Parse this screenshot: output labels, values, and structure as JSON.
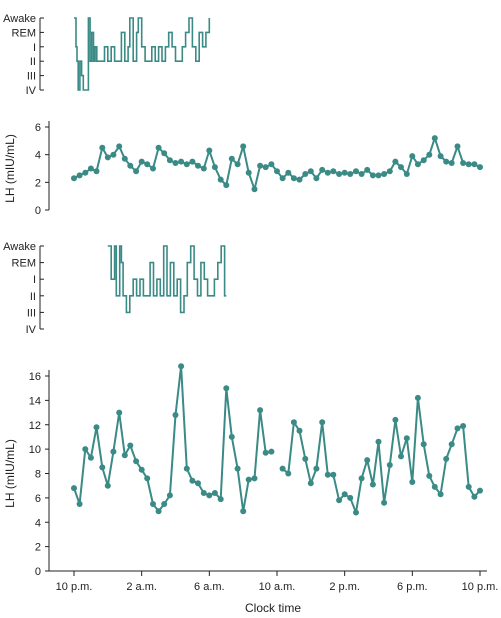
{
  "colors": {
    "series": "#3a8a86",
    "axis": "#222222"
  },
  "x_axis": {
    "title": "Clock time",
    "tick_labels": [
      "10 p.m.",
      "2 a.m.",
      "6 a.m.",
      "10 a.m.",
      "2 p.m.",
      "6 p.m.",
      "10 p.m."
    ],
    "hours_since_10pm": [
      0,
      4,
      8,
      12,
      16,
      20,
      24
    ]
  },
  "chart_data": [
    {
      "type": "line",
      "chart": "sleep-stage-hypnogram-1",
      "ylabel": "",
      "stage_labels": [
        "Awake",
        "REM",
        "I",
        "II",
        "III",
        "IV"
      ],
      "note": "",
      "x": [
        0.0,
        0.1,
        0.12,
        0.15,
        0.18,
        0.2,
        0.25,
        0.3,
        0.35,
        0.4,
        0.45,
        0.5,
        0.55,
        0.6,
        0.65,
        0.7,
        0.75,
        0.8,
        0.85,
        0.9,
        0.95,
        1.0,
        1.05,
        1.1,
        1.15,
        1.2,
        1.25,
        1.3,
        1.35,
        1.4,
        1.5,
        1.6,
        1.65,
        1.7,
        1.8,
        1.9,
        2.0,
        2.1,
        2.2,
        2.3,
        2.4,
        2.5,
        2.6,
        2.7,
        2.8,
        2.9,
        3.0,
        3.1,
        3.2,
        3.3,
        3.4,
        3.5,
        3.6,
        3.7,
        3.8,
        3.9,
        4.0,
        4.1,
        4.2,
        4.3,
        4.4,
        4.5,
        4.6,
        4.7,
        4.8,
        4.9,
        5.0,
        5.1,
        5.2,
        5.3,
        5.4,
        5.5,
        5.6,
        5.7,
        5.8,
        5.9,
        6.0,
        6.1,
        6.2,
        6.3,
        6.4,
        6.5,
        6.6,
        6.7,
        6.8,
        6.9,
        7.0,
        7.1,
        7.2,
        7.3,
        7.4,
        7.5,
        7.6,
        7.7,
        7.8,
        7.9,
        8.0
      ],
      "stage": [
        0,
        0,
        2,
        2,
        3,
        3,
        5,
        5,
        3,
        3,
        4,
        4,
        5,
        5,
        5,
        5,
        5,
        5,
        0,
        0,
        3,
        3,
        1,
        1,
        3,
        3,
        2,
        2,
        3,
        3,
        3,
        3,
        3,
        3,
        2,
        2,
        3,
        3,
        2,
        2,
        3,
        3,
        3,
        3,
        1,
        1,
        3,
        3,
        2,
        0,
        0,
        3,
        3,
        1,
        0,
        0,
        2,
        2,
        3,
        3,
        3,
        3,
        2,
        2,
        3,
        3,
        2,
        2,
        3,
        3,
        2,
        2,
        1,
        1,
        2,
        2,
        3,
        3,
        3,
        3,
        2,
        2,
        1,
        1,
        0,
        0,
        2,
        2,
        3,
        3,
        1,
        1,
        2,
        2,
        1,
        1,
        0
      ]
    },
    {
      "type": "line",
      "chart": "lh-profile-1",
      "title": "",
      "xlabel": "",
      "ylabel": "LH (mIU/mL)",
      "ylim": [
        0,
        6
      ],
      "yticks": [
        0,
        2,
        4,
        6
      ],
      "x_hours": [
        0.0,
        0.33,
        0.67,
        1.0,
        1.33,
        1.67,
        2.0,
        2.33,
        2.67,
        3.0,
        3.33,
        3.67,
        4.0,
        4.33,
        4.67,
        5.0,
        5.33,
        5.67,
        6.0,
        6.33,
        6.67,
        7.0,
        7.33,
        7.67,
        8.0,
        8.33,
        8.67,
        9.0,
        9.33,
        9.67,
        10.0,
        10.33,
        10.67,
        11.0,
        11.33,
        11.67,
        12.0,
        12.33,
        12.67,
        13.0,
        13.33,
        13.67,
        14.0,
        14.33,
        14.67,
        15.0,
        15.33,
        15.67,
        16.0,
        16.33,
        16.67,
        17.0,
        17.33,
        17.67,
        18.0,
        18.33,
        18.67,
        19.0,
        19.33,
        19.67,
        20.0,
        20.33,
        20.67,
        21.0,
        21.33,
        21.67,
        22.0,
        22.33,
        22.67,
        23.0,
        23.33,
        23.67,
        24.0
      ],
      "values": [
        2.3,
        2.5,
        2.7,
        3.0,
        2.8,
        4.5,
        3.8,
        4.0,
        4.6,
        3.7,
        3.2,
        2.8,
        3.5,
        3.3,
        3.0,
        4.5,
        4.1,
        3.6,
        3.4,
        3.5,
        3.3,
        3.5,
        3.2,
        3.0,
        4.3,
        3.1,
        2.2,
        1.8,
        3.7,
        3.3,
        4.6,
        2.7,
        1.5,
        3.2,
        3.1,
        3.3,
        2.8,
        2.3,
        2.7,
        2.3,
        2.2,
        2.6,
        2.8,
        2.3,
        2.9,
        2.7,
        2.8,
        2.6,
        2.7,
        2.6,
        2.8,
        2.6,
        2.9,
        2.5,
        2.5,
        2.6,
        2.8,
        3.5,
        3.1,
        2.6,
        3.9,
        3.3,
        3.6,
        4.0,
        5.2,
        3.9,
        3.5,
        3.4,
        4.6,
        3.4,
        3.3,
        3.3,
        3.1
      ]
    },
    {
      "type": "line",
      "chart": "sleep-stage-hypnogram-2",
      "ylabel": "",
      "stage_labels": [
        "Awake",
        "REM",
        "I",
        "II",
        "III",
        "IV"
      ],
      "note": "",
      "x": [
        2.0,
        2.1,
        2.2,
        2.3,
        2.4,
        2.5,
        2.6,
        2.7,
        2.8,
        2.9,
        3.0,
        3.1,
        3.2,
        3.3,
        3.4,
        3.5,
        3.6,
        3.7,
        3.8,
        3.9,
        4.0,
        4.1,
        4.2,
        4.3,
        4.4,
        4.5,
        4.6,
        4.7,
        4.8,
        4.9,
        5.0,
        5.1,
        5.2,
        5.3,
        5.4,
        5.5,
        5.6,
        5.7,
        5.8,
        5.9,
        6.0,
        6.1,
        6.2,
        6.3,
        6.4,
        6.5,
        6.6,
        6.7,
        6.8,
        6.9,
        7.0,
        7.1,
        7.2,
        7.3,
        7.4,
        7.5,
        7.6,
        7.7,
        7.8,
        7.9,
        8.0,
        8.1,
        8.2,
        8.3,
        8.4,
        8.5,
        8.6,
        8.7,
        8.8,
        8.9,
        9.0
      ],
      "stage": [
        0,
        0,
        2,
        2,
        0,
        3,
        3,
        0,
        1,
        3,
        3,
        4,
        4,
        3,
        3,
        2,
        2,
        3,
        3,
        2,
        2,
        3,
        3,
        3,
        3,
        1,
        1,
        3,
        3,
        2,
        2,
        3,
        3,
        0,
        0,
        3,
        3,
        1,
        1,
        3,
        3,
        2,
        2,
        4,
        4,
        3,
        3,
        1,
        1,
        0,
        0,
        2,
        2,
        3,
        3,
        1,
        1,
        2,
        2,
        3,
        3,
        3,
        3,
        2,
        2,
        1,
        1,
        0,
        0,
        3,
        3
      ]
    },
    {
      "type": "line",
      "chart": "lh-profile-2",
      "title": "",
      "xlabel": "Clock time",
      "ylabel": "LH (mIU/mL)",
      "ylim": [
        0,
        16
      ],
      "yticks": [
        0,
        2,
        4,
        6,
        8,
        10,
        12,
        14,
        16
      ],
      "segments": [
        {
          "x_hours": [
            0.0,
            0.33,
            0.67,
            1.0,
            1.33,
            1.67,
            2.0,
            2.33,
            2.67,
            3.0,
            3.33,
            3.67,
            4.0,
            4.33,
            4.67,
            5.0,
            5.33,
            5.67,
            6.0,
            6.33,
            6.67,
            7.0,
            7.33,
            7.67,
            8.0,
            8.33,
            8.67,
            9.0,
            9.33,
            9.67,
            10.0,
            10.33,
            10.67,
            11.0,
            11.33,
            11.67
          ],
          "values": [
            6.8,
            5.5,
            10.0,
            9.3,
            11.8,
            8.5,
            7.0,
            9.8,
            13.0,
            9.5,
            10.3,
            9.0,
            8.3,
            7.6,
            5.5,
            4.9,
            5.5,
            6.2,
            12.8,
            16.8,
            8.4,
            7.4,
            7.2,
            6.4,
            6.2,
            6.4,
            5.9,
            15.0,
            11.0,
            8.4,
            4.9,
            7.5,
            7.6,
            13.2,
            9.7,
            9.8
          ]
        },
        {
          "x_hours": [
            12.33,
            12.67,
            13.0,
            13.33,
            13.67,
            14.0,
            14.33,
            14.67,
            15.0,
            15.33,
            15.67,
            16.0,
            16.33,
            16.67,
            17.0,
            17.33,
            17.67,
            18.0,
            18.33,
            18.67,
            19.0,
            19.33,
            19.67,
            20.0,
            20.33,
            20.67,
            21.0,
            21.33,
            21.67,
            22.0,
            22.33,
            22.67,
            23.0,
            23.33,
            23.67,
            24.0
          ],
          "values": [
            8.4,
            8.0,
            12.2,
            11.5,
            9.2,
            7.2,
            8.4,
            12.2,
            7.9,
            7.9,
            5.8,
            6.3,
            6.0,
            4.8,
            7.6,
            9.1,
            7.1,
            10.6,
            5.6,
            8.7,
            12.4,
            9.4,
            10.9,
            7.3,
            14.2,
            10.4,
            7.8,
            6.9,
            6.3,
            9.2,
            10.4,
            11.7,
            11.9,
            6.9,
            6.1,
            6.6
          ]
        }
      ]
    }
  ]
}
